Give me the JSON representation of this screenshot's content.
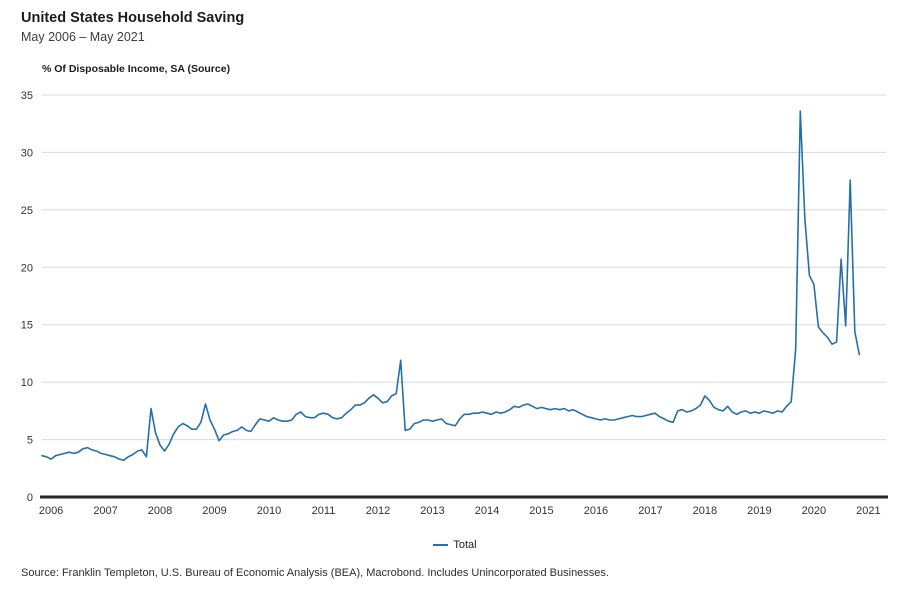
{
  "header": {
    "title": "United States Household Saving",
    "subtitle": "May 2006 – May 2021",
    "axis_caption": "% Of Disposable Income, SA (Source)"
  },
  "legend": {
    "label": "Total"
  },
  "footer": {
    "source": "Source: Franklin Templeton, U.S. Bureau of Economic Analysis (BEA), Macrobond. Includes Unincorporated Businesses."
  },
  "colors": {
    "line": "#2670a9",
    "grid": "#d9d9d9",
    "zero_axis": "#262626",
    "tick_text": "#333333"
  },
  "chart_data": {
    "type": "line",
    "title": "United States Household Saving",
    "subtitle": "May 2006 – May 2021",
    "ylabel": "% Of Disposable Income, SA (Source)",
    "xlabel": "",
    "ylim": [
      0,
      35
    ],
    "ytick_step": 5,
    "grid": "horizontal",
    "frequency": "monthly",
    "x_start": "2006-05",
    "x_end": "2021-05",
    "year_ticks": [
      2006,
      2007,
      2008,
      2009,
      2010,
      2011,
      2012,
      2013,
      2014,
      2015,
      2016,
      2017,
      2018,
      2019,
      2020,
      2021
    ],
    "legend_entries": [
      "Total"
    ],
    "legend_position": "bottom-center",
    "series": [
      {
        "name": "Total",
        "values": [
          3.6,
          3.5,
          3.3,
          3.6,
          3.7,
          3.8,
          3.9,
          3.8,
          3.9,
          4.2,
          4.3,
          4.1,
          4.0,
          3.8,
          3.7,
          3.6,
          3.5,
          3.3,
          3.2,
          3.5,
          3.7,
          4.0,
          4.1,
          3.5,
          7.7,
          5.6,
          4.5,
          4.0,
          4.6,
          5.5,
          6.1,
          6.4,
          6.2,
          5.9,
          5.9,
          6.5,
          8.1,
          6.7,
          5.9,
          4.9,
          5.4,
          5.5,
          5.7,
          5.8,
          6.1,
          5.8,
          5.7,
          6.3,
          6.8,
          6.7,
          6.6,
          6.9,
          6.7,
          6.6,
          6.6,
          6.7,
          7.2,
          7.4,
          7.0,
          6.9,
          6.9,
          7.2,
          7.3,
          7.2,
          6.9,
          6.8,
          6.9,
          7.3,
          7.6,
          8.0,
          8.0,
          8.2,
          8.6,
          8.9,
          8.6,
          8.2,
          8.3,
          8.8,
          9.0,
          11.9,
          5.8,
          5.9,
          6.4,
          6.5,
          6.7,
          6.7,
          6.6,
          6.7,
          6.8,
          6.4,
          6.3,
          6.2,
          6.8,
          7.2,
          7.2,
          7.3,
          7.3,
          7.4,
          7.3,
          7.2,
          7.4,
          7.3,
          7.4,
          7.6,
          7.9,
          7.8,
          8.0,
          8.1,
          7.9,
          7.7,
          7.8,
          7.7,
          7.6,
          7.7,
          7.6,
          7.7,
          7.5,
          7.6,
          7.4,
          7.2,
          7.0,
          6.9,
          6.8,
          6.7,
          6.8,
          6.7,
          6.7,
          6.8,
          6.9,
          7.0,
          7.1,
          7.0,
          7.0,
          7.1,
          7.2,
          7.3,
          7.0,
          6.8,
          6.6,
          6.5,
          7.5,
          7.6,
          7.4,
          7.5,
          7.7,
          8.0,
          8.8,
          8.4,
          7.8,
          7.6,
          7.5,
          7.9,
          7.4,
          7.2,
          7.4,
          7.5,
          7.3,
          7.4,
          7.3,
          7.5,
          7.4,
          7.3,
          7.5,
          7.4,
          7.9,
          8.3,
          12.9,
          33.6,
          24.3,
          19.3,
          18.5,
          14.8,
          14.3,
          13.9,
          13.3,
          13.5,
          20.7,
          14.9,
          27.6,
          14.4,
          12.4
        ]
      }
    ]
  }
}
